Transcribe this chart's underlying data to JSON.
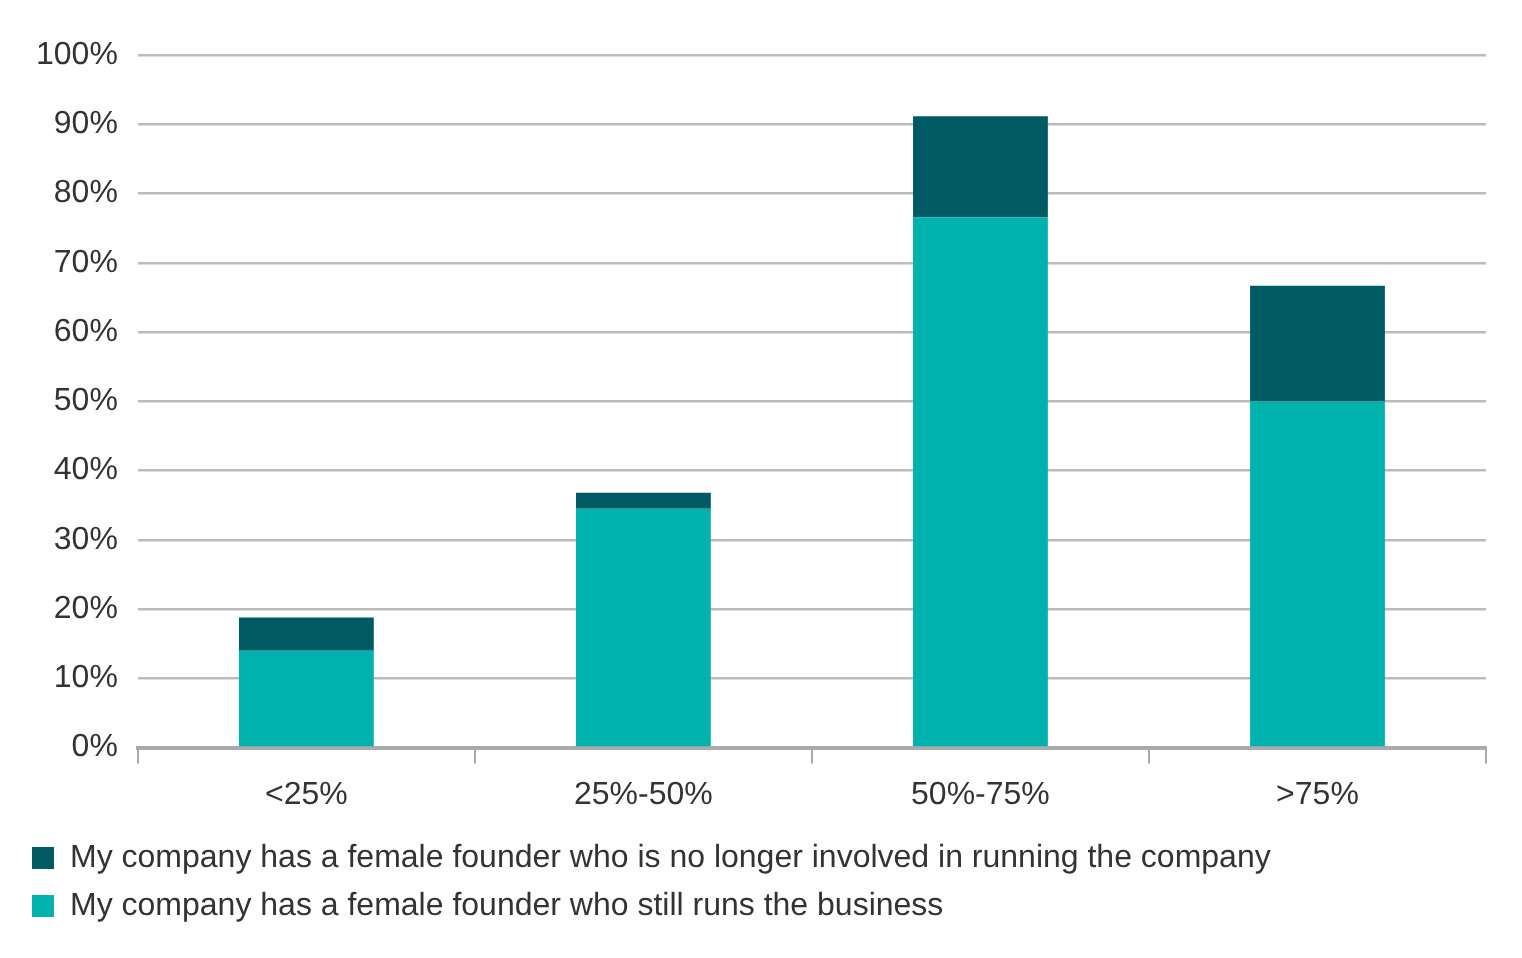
{
  "chart_data": {
    "type": "bar",
    "stacked": true,
    "categories": [
      "<25%",
      "25%-50%",
      "50%-75%",
      ">75%"
    ],
    "series": [
      {
        "name": "My company has a female founder who still runs the business",
        "color": "#00b2ad",
        "values": [
          14,
          34.5,
          76.6,
          50
        ]
      },
      {
        "name": "My company has a female founder who is no longer involved in running the company",
        "color": "#005a63",
        "values": [
          4.8,
          2.3,
          14.6,
          16.7
        ]
      }
    ],
    "ylim": [
      0,
      100
    ],
    "yticks": [
      {
        "value": 0,
        "label": "0%"
      },
      {
        "value": 10,
        "label": "10%"
      },
      {
        "value": 20,
        "label": "20%"
      },
      {
        "value": 30,
        "label": "30%"
      },
      {
        "value": 40,
        "label": "40%"
      },
      {
        "value": 50,
        "label": "50%"
      },
      {
        "value": 60,
        "label": "60%"
      },
      {
        "value": 70,
        "label": "70%"
      },
      {
        "value": 80,
        "label": "80%"
      },
      {
        "value": 90,
        "label": "90%"
      },
      {
        "value": 100,
        "label": "100%"
      }
    ],
    "grid": "y",
    "legend": "bottom"
  }
}
